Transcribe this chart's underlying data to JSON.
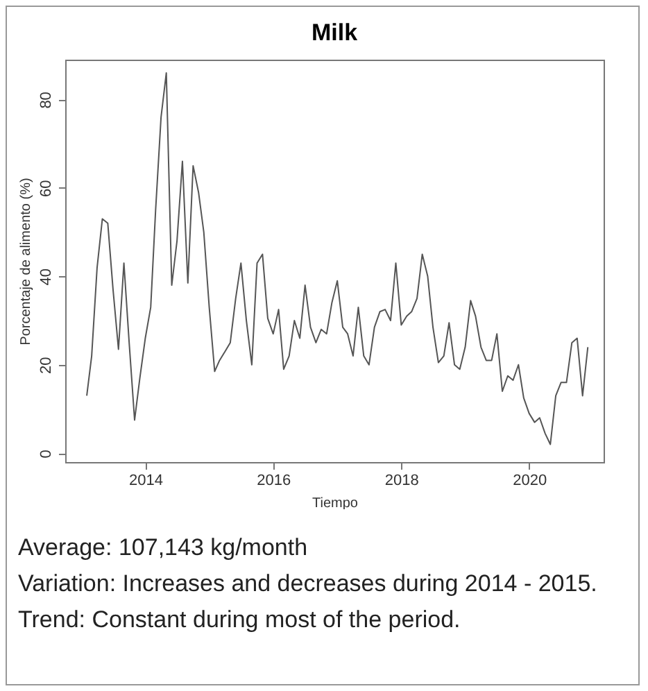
{
  "chart_data": {
    "type": "line",
    "title": "Milk",
    "xlabel": "Tiempo",
    "ylabel": "Porcentaje de alimento (%)",
    "x": [
      "2013-02",
      "2013-03",
      "2013-04",
      "2013-05",
      "2013-06",
      "2013-07",
      "2013-08",
      "2013-09",
      "2013-10",
      "2013-11",
      "2013-12",
      "2014-01",
      "2014-02",
      "2014-03",
      "2014-04",
      "2014-05",
      "2014-06",
      "2014-07",
      "2014-08",
      "2014-09",
      "2014-10",
      "2014-11",
      "2014-12",
      "2015-01",
      "2015-02",
      "2015-03",
      "2015-04",
      "2015-05",
      "2015-06",
      "2015-07",
      "2015-08",
      "2015-09",
      "2015-10",
      "2015-11",
      "2015-12",
      "2016-01",
      "2016-02",
      "2016-03",
      "2016-04",
      "2016-05",
      "2016-06",
      "2016-07",
      "2016-08",
      "2016-09",
      "2016-10",
      "2016-11",
      "2016-12",
      "2017-01",
      "2017-02",
      "2017-03",
      "2017-04",
      "2017-05",
      "2017-06",
      "2017-07",
      "2017-08",
      "2017-09",
      "2017-10",
      "2017-11",
      "2017-12",
      "2018-01",
      "2018-02",
      "2018-03",
      "2018-04",
      "2018-05",
      "2018-06",
      "2018-07",
      "2018-08",
      "2018-09",
      "2018-10",
      "2018-11",
      "2018-12",
      "2019-01",
      "2019-02",
      "2019-03",
      "2019-04",
      "2019-05",
      "2019-06",
      "2019-07",
      "2019-08",
      "2019-09",
      "2019-10",
      "2019-11",
      "2019-12",
      "2020-01",
      "2020-02",
      "2020-03",
      "2020-04",
      "2020-05",
      "2020-06",
      "2020-07",
      "2020-08",
      "2020-09",
      "2020-10",
      "2020-11",
      "2020-12"
    ],
    "series": [
      {
        "color": "#555555",
        "values": [
          13,
          22,
          42,
          53,
          52,
          37,
          23.5,
          43,
          25,
          7.5,
          17,
          26,
          33,
          55,
          76,
          86,
          38,
          48,
          66,
          38.5,
          65,
          59,
          50,
          33,
          18.5,
          21,
          23,
          25,
          35,
          43,
          30,
          20,
          43,
          45,
          30.5,
          27,
          32.5,
          19,
          22,
          30,
          26,
          38,
          28.5,
          25,
          28,
          27,
          34,
          39,
          28.5,
          27,
          22,
          33,
          22,
          20,
          28.5,
          32,
          32.5,
          30,
          43,
          29,
          31,
          32,
          35,
          45,
          40,
          28.5,
          20.5,
          22,
          29.5,
          20,
          19,
          24,
          34.5,
          31,
          24,
          21,
          21,
          27,
          14,
          17.5,
          16.5,
          20,
          12.5,
          9,
          7,
          8,
          4.5,
          2,
          13,
          16,
          16,
          25,
          26,
          13,
          24
        ]
      }
    ],
    "xlim": [
      "2012-10",
      "2021-03"
    ],
    "xticks": [
      "2014",
      "2016",
      "2018",
      "2020"
    ],
    "ylim": [
      -2,
      89
    ],
    "yticks": [
      0,
      20,
      40,
      60,
      80
    ],
    "grid": false,
    "legend": false,
    "marker": "none",
    "line_style": "solid",
    "annotations": [
      "Average: 107,143 kg/month",
      "Variation: Increases and decreases during 2014 - 2015.",
      "Trend: Constant during most of the period."
    ]
  }
}
